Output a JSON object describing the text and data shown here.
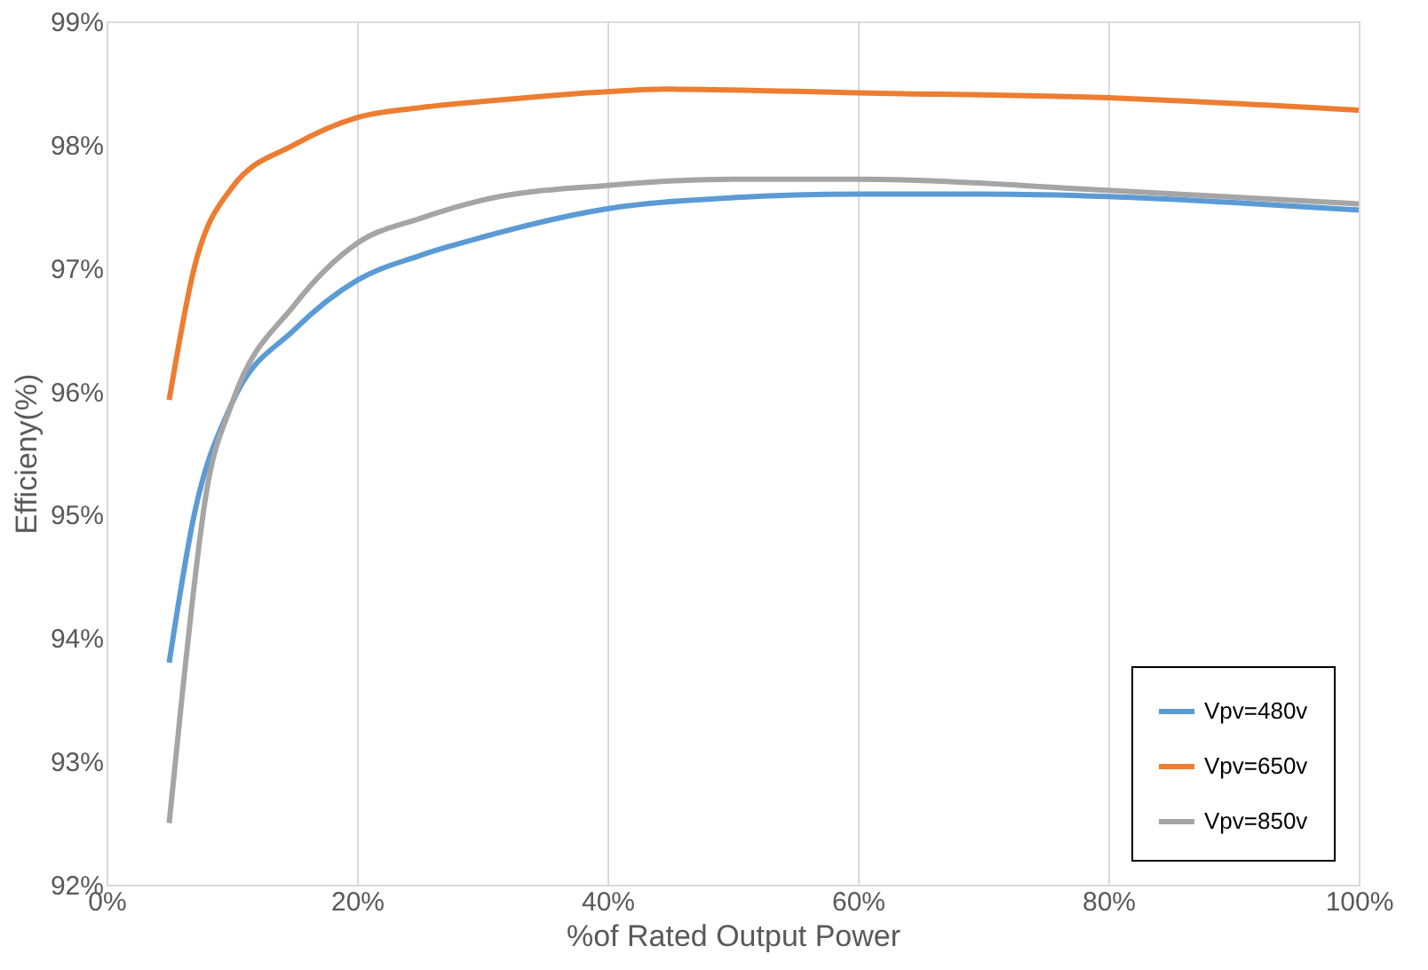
{
  "chart_data": {
    "type": "line",
    "xlabel": "%of Rated Output Power",
    "ylabel": "Efficieny(%)",
    "xlim": [
      0,
      100
    ],
    "ylim": [
      92,
      99
    ],
    "xticks": [
      {
        "value": 0,
        "label": "0%"
      },
      {
        "value": 20,
        "label": "20%"
      },
      {
        "value": 40,
        "label": "40%"
      },
      {
        "value": 60,
        "label": "60%"
      },
      {
        "value": 80,
        "label": "80%"
      },
      {
        "value": 100,
        "label": "100%"
      }
    ],
    "yticks": [
      {
        "value": 92,
        "label": "92%"
      },
      {
        "value": 93,
        "label": "93%"
      },
      {
        "value": 94,
        "label": "94%"
      },
      {
        "value": 95,
        "label": "95%"
      },
      {
        "value": 96,
        "label": "96%"
      },
      {
        "value": 97,
        "label": "97%"
      },
      {
        "value": 98,
        "label": "98%"
      },
      {
        "value": 99,
        "label": "99%"
      }
    ],
    "grid": "x",
    "legend": "bottom right",
    "marker": "none",
    "line_style": "solid",
    "series": [
      {
        "name": "Vpv=480v",
        "color": "#5b9bd5",
        "x": [
          5,
          7,
          10,
          15,
          20,
          25,
          30,
          40,
          50,
          60,
          70,
          80,
          90,
          100
        ],
        "values": [
          93.8,
          95.0,
          95.9,
          96.5,
          96.9,
          97.1,
          97.25,
          97.48,
          97.57,
          97.6,
          97.6,
          97.58,
          97.53,
          97.47
        ]
      },
      {
        "name": "Vpv=650v",
        "color": "#ed7d31",
        "x": [
          5,
          7,
          10,
          15,
          20,
          25,
          30,
          40,
          45,
          60,
          80,
          100
        ],
        "values": [
          95.93,
          97.0,
          97.65,
          98.0,
          98.22,
          98.3,
          98.35,
          98.43,
          98.45,
          98.42,
          98.38,
          98.28
        ]
      },
      {
        "name": "Vpv=850v",
        "color": "#a5a5a5",
        "x": [
          5,
          6,
          8,
          10,
          15,
          20,
          25,
          30,
          40,
          50,
          60,
          80,
          100
        ],
        "values": [
          92.5,
          93.5,
          95.2,
          95.9,
          96.7,
          97.2,
          97.4,
          97.55,
          97.67,
          97.72,
          97.72,
          97.63,
          97.52
        ]
      }
    ]
  }
}
